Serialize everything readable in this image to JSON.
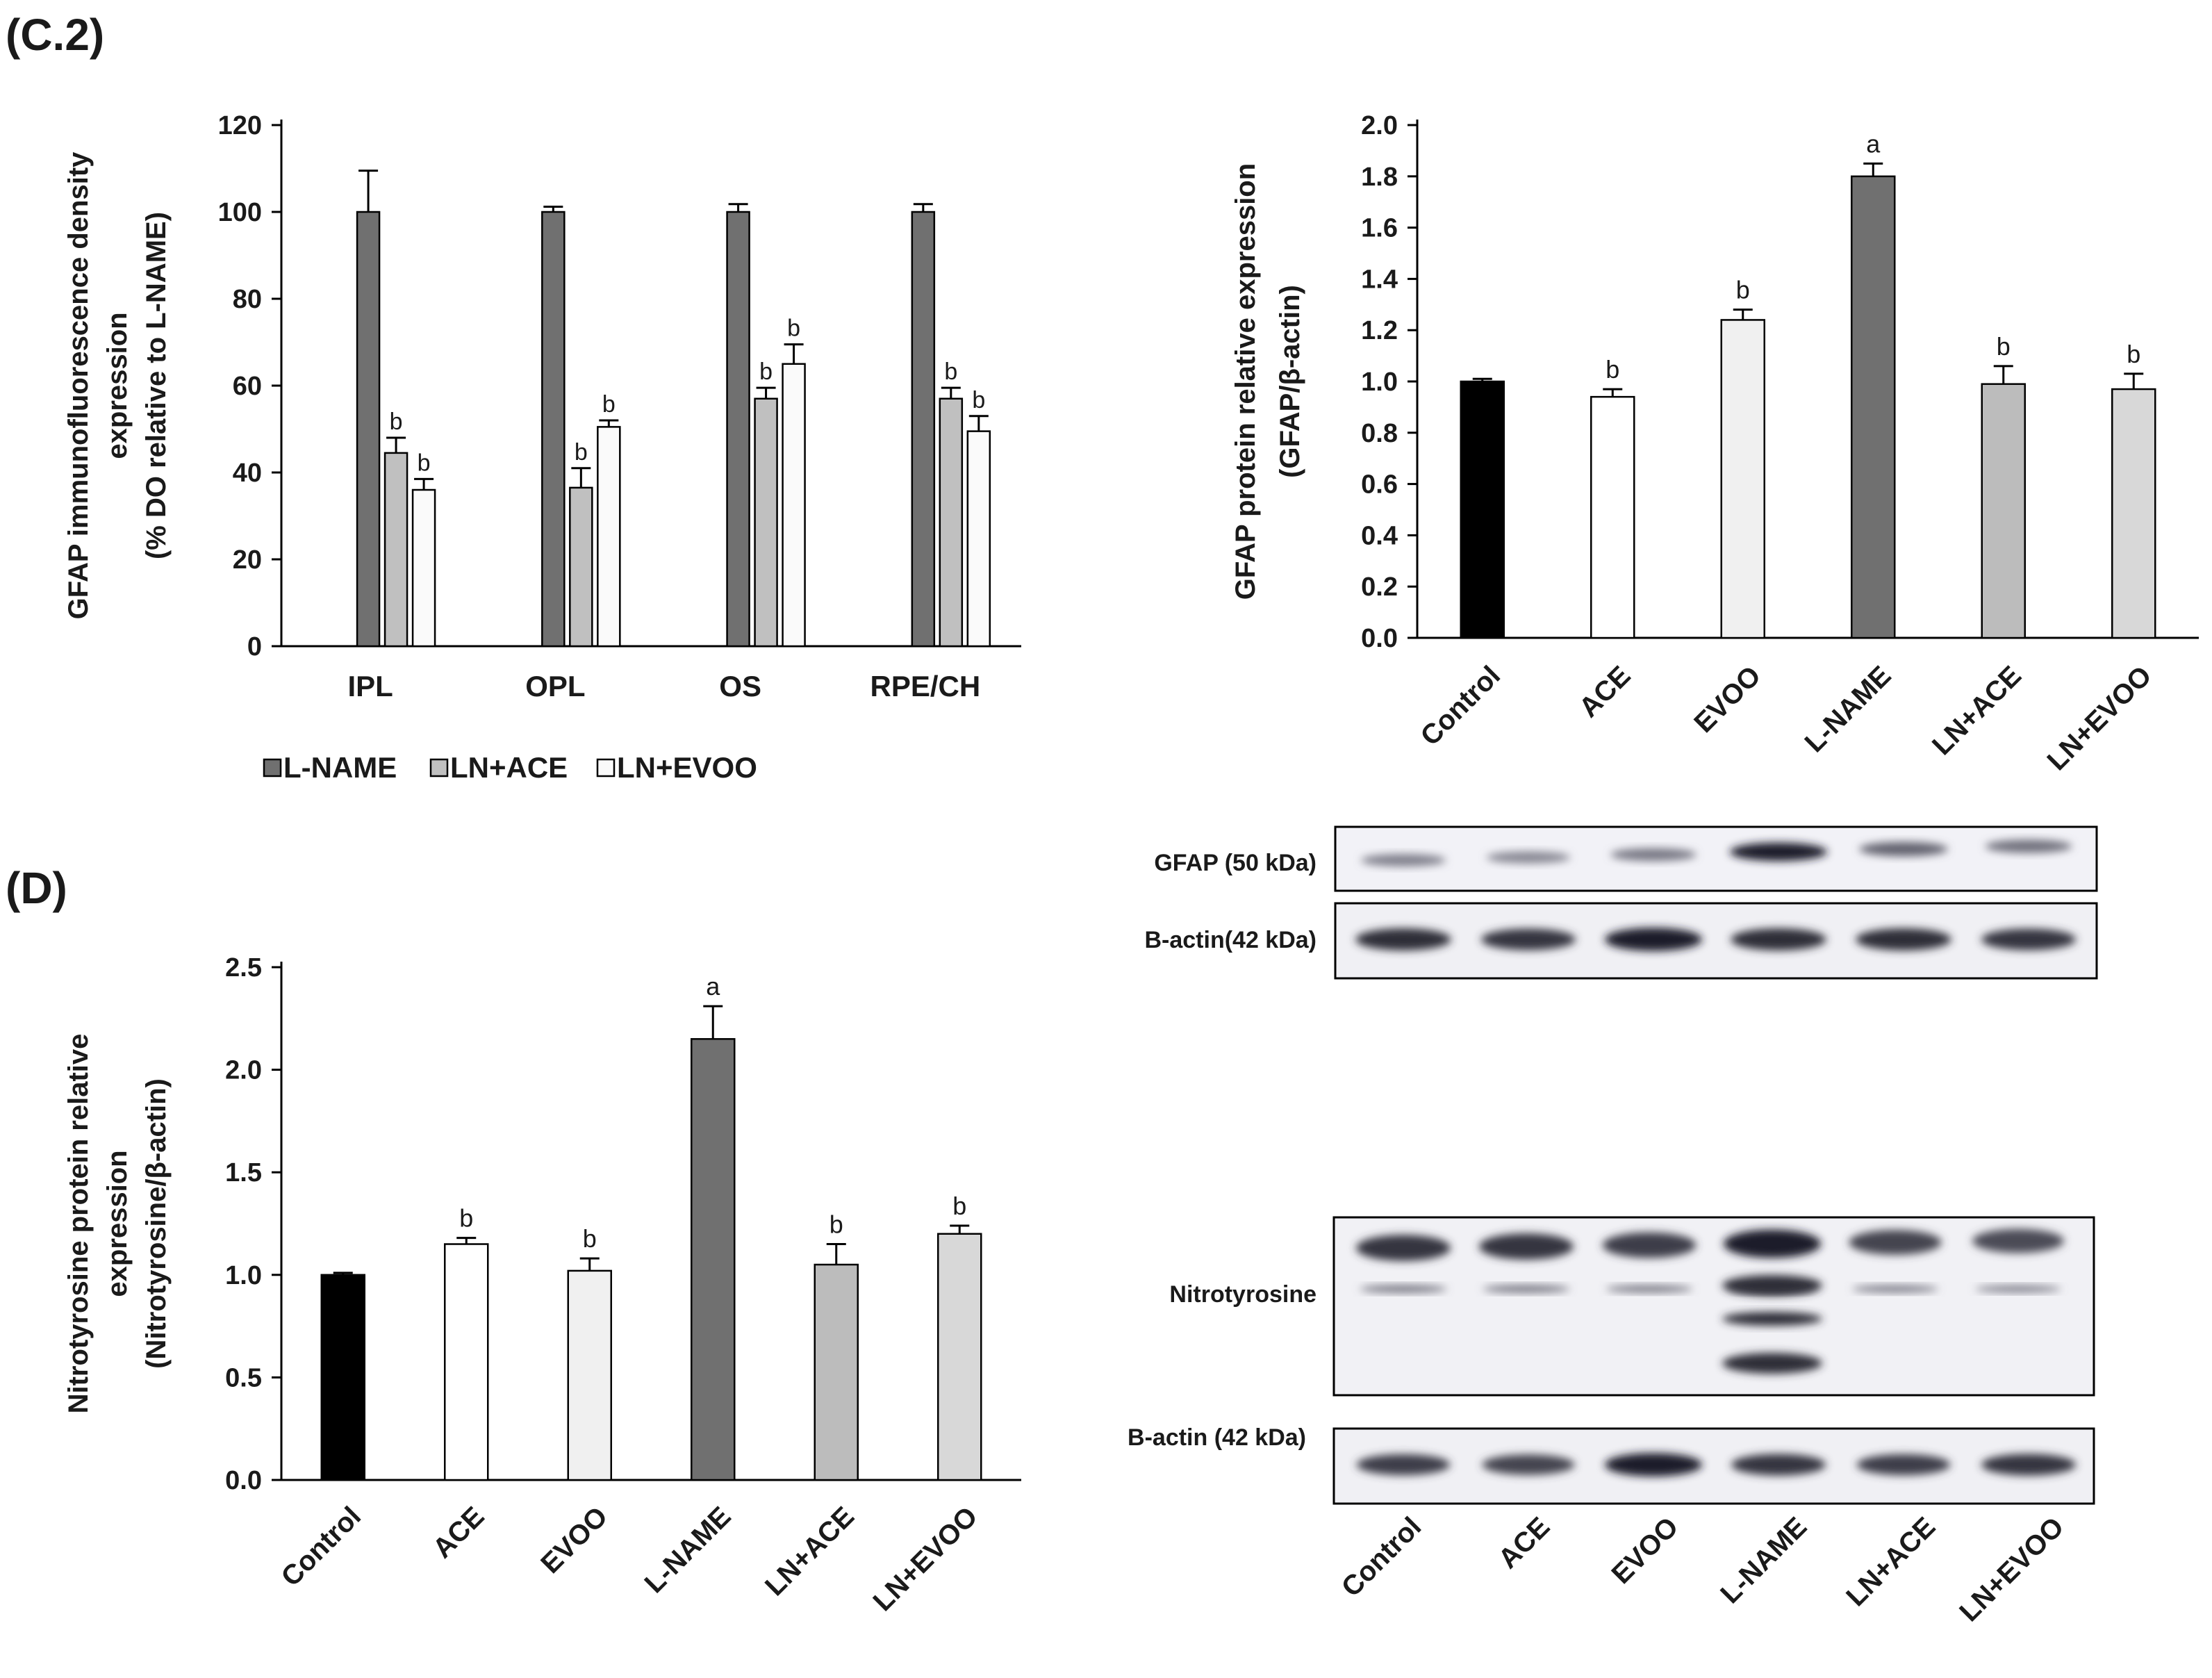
{
  "panels": {
    "c2": "(C.2)",
    "d": "(D)"
  },
  "chart_data": [
    {
      "id": "if",
      "type": "bar",
      "categories": [
        "IPL",
        "OPL",
        "OS",
        "RPE/CH"
      ],
      "series": [
        {
          "name": "L-NAME",
          "color": "#707070",
          "values": [
            100,
            100,
            100,
            100
          ],
          "errors": [
            9.5,
            1.2,
            1.8,
            1.8
          ],
          "sig": [
            "",
            "",
            "",
            ""
          ]
        },
        {
          "name": "LN+ACE",
          "color": "#c0c0c0",
          "values": [
            44.5,
            36.5,
            57,
            57
          ],
          "errors": [
            3.5,
            4.5,
            2.5,
            2.5
          ],
          "sig": [
            "b",
            "b",
            "b",
            "b"
          ]
        },
        {
          "name": "LN+EVOO",
          "color": "#fafafa",
          "values": [
            36,
            50.5,
            65,
            49.5
          ],
          "errors": [
            2.5,
            1.5,
            4.5,
            3.5
          ],
          "sig": [
            "b",
            "b",
            "b",
            "b"
          ]
        }
      ],
      "ylabel": [
        "GFAP immunofluorescence density",
        "expression",
        "(% DO relative to L-NAME)"
      ],
      "ylim": [
        0,
        120
      ],
      "yticks": [
        0,
        20,
        40,
        60,
        80,
        100,
        120
      ],
      "ytick_labels": [
        "0",
        "20",
        "40",
        "60",
        "80",
        "100",
        "120"
      ],
      "legend": "bottom"
    },
    {
      "id": "gfap",
      "type": "bar",
      "categories": [
        "Control",
        "ACE",
        "EVOO",
        "L-NAME",
        "LN+ACE",
        "LN+EVOO"
      ],
      "values": [
        1.0,
        0.94,
        1.24,
        1.8,
        0.99,
        0.97
      ],
      "errors": [
        0.01,
        0.03,
        0.04,
        0.05,
        0.07,
        0.06
      ],
      "sig": [
        "",
        "b",
        "b",
        "a",
        "b",
        "b"
      ],
      "colors": [
        "#000000",
        "#ffffff",
        "#f0f0f0",
        "#707070",
        "#bcbcbc",
        "#d8d8d8"
      ],
      "ylabel": [
        "GFAP protein relative expression",
        "(GFAP/β-actin)"
      ],
      "ylim": [
        0,
        2.0
      ],
      "yticks": [
        0,
        0.2,
        0.4,
        0.6,
        0.8,
        1.0,
        1.2,
        1.4,
        1.6,
        1.8,
        2.0
      ],
      "ytick_labels": [
        "0.0",
        "0.2",
        "0.4",
        "0.6",
        "0.8",
        "1.0",
        "1.2",
        "1.4",
        "1.6",
        "1.8",
        "2.0"
      ]
    },
    {
      "id": "nitro",
      "type": "bar",
      "categories": [
        "Control",
        "ACE",
        "EVOO",
        "L-NAME",
        "LN+ACE",
        "LN+EVOO"
      ],
      "values": [
        1.0,
        1.15,
        1.02,
        2.15,
        1.05,
        1.2
      ],
      "errors": [
        0.01,
        0.03,
        0.06,
        0.16,
        0.1,
        0.04
      ],
      "sig": [
        "",
        "b",
        "b",
        "a",
        "b",
        "b"
      ],
      "colors": [
        "#000000",
        "#ffffff",
        "#f0f0f0",
        "#707070",
        "#bcbcbc",
        "#d8d8d8"
      ],
      "ylabel": [
        "Nitrotyrosine protein relative",
        "expression",
        "(Nitrotyrosine/β-actin)"
      ],
      "ylim": [
        0,
        2.5
      ],
      "yticks": [
        0,
        0.5,
        1.0,
        1.5,
        2.0,
        2.5
      ],
      "ytick_labels": [
        "0.0",
        "0.5",
        "1.0",
        "1.5",
        "2.0",
        "2.5"
      ]
    }
  ],
  "blots": {
    "gfap_label": "GFAP (50 kDa)",
    "actin_label_1": "B-actin(42 kDa)",
    "nitro_label": "Nitrotyrosine",
    "actin_label_2": "B-actin (42 kDa)",
    "lanes": [
      "Control",
      "ACE",
      "EVOO",
      "L-NAME",
      "LN+ACE",
      "LN+EVOO"
    ],
    "gfap_intensity": [
      0.35,
      0.3,
      0.4,
      1.0,
      0.55,
      0.45
    ],
    "actin_intensity": [
      0.9,
      0.85,
      1.0,
      0.9,
      0.9,
      0.85
    ],
    "nitro_intensity": [
      0.85,
      0.85,
      0.8,
      1.0,
      0.75,
      0.7
    ],
    "actin2_intensity": [
      0.8,
      0.75,
      1.0,
      0.85,
      0.8,
      0.85
    ]
  }
}
